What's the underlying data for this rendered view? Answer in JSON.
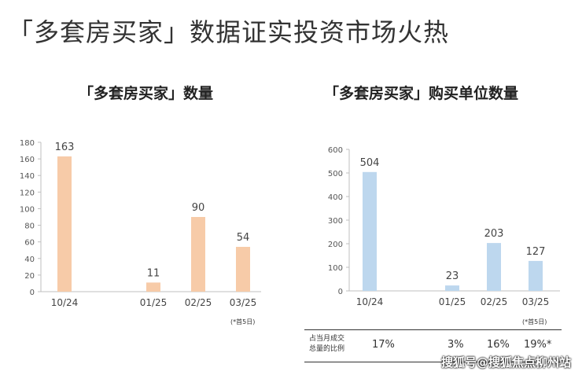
{
  "headline": "「多套房买家」数据证实投资市场火热",
  "chart_data": [
    {
      "type": "bar",
      "title": "「多套房买家」数量",
      "categories": [
        "10/24",
        "01/25",
        "02/25",
        "03/25"
      ],
      "values": [
        163,
        11,
        90,
        54
      ],
      "data_labels": [
        "163",
        "11",
        "90",
        "54"
      ],
      "yticks": [
        "0",
        "20",
        "40",
        "60",
        "80",
        "100",
        "120",
        "140",
        "160",
        "180"
      ],
      "ylim": [
        0,
        180
      ],
      "color": "#F7CBA8",
      "note": "(*首5日)"
    },
    {
      "type": "bar",
      "title": "「多套房买家」购买单位数量",
      "categories": [
        "10/24",
        "01/25",
        "02/25",
        "03/25"
      ],
      "values": [
        504,
        23,
        203,
        127
      ],
      "data_labels": [
        "504",
        "23",
        "203",
        "127"
      ],
      "yticks": [
        "0",
        "100",
        "200",
        "300",
        "400",
        "500",
        "600"
      ],
      "ylim": [
        0,
        600
      ],
      "color": "#BDD7EE",
      "note": "(*首5日)"
    }
  ],
  "table": {
    "row_label_line1": "占当月成交",
    "row_label_line2": "总量的比例",
    "values": [
      "17%",
      "3%",
      "16%",
      "19%*"
    ]
  },
  "watermark": "搜狐号@搜狐焦点柳州站"
}
